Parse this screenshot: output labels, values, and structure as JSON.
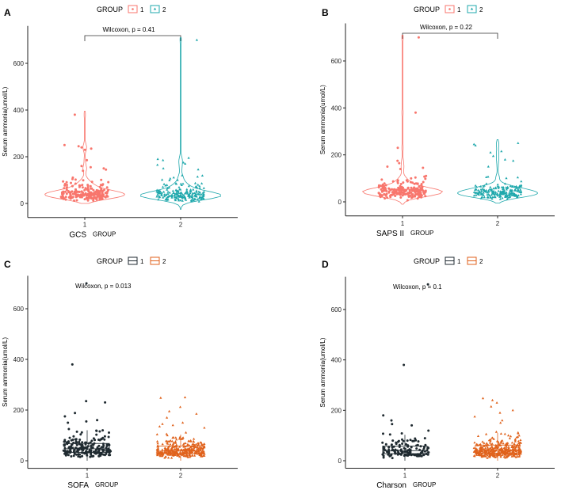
{
  "chart_data": [
    {
      "panel_label": "A",
      "type": "violin",
      "legend_title": "GROUP",
      "legend_position": "top",
      "legend_entries": [
        "1",
        "2"
      ],
      "ylabel": "Serum ammonia(umol/L)",
      "xlabel_left": "GCS",
      "xlabel": "GROUP",
      "categories": [
        "1",
        "2"
      ],
      "yticks": [
        "0",
        "200",
        "400",
        "600"
      ],
      "ylim": [
        -60,
        760
      ],
      "annotation": "Wilcoxon, p = 0.41",
      "bracket": true,
      "colors": [
        "#F8766D",
        "#1FA8AC"
      ],
      "markers": [
        "circle",
        "triangle"
      ],
      "series": [
        {
          "name": "1",
          "median": 40,
          "n": 200,
          "outliers": [
            380,
            250,
            245,
            240,
            235,
            230,
            185,
            160,
            155,
            150,
            145,
            140
          ],
          "violin_max": 395,
          "violin_min": 0
        },
        {
          "name": "2",
          "median": 38,
          "n": 200,
          "outliers": [
            700,
            195,
            190,
            185,
            175,
            170,
            165,
            150,
            145,
            120
          ],
          "violin_max": 710,
          "violin_min": -25
        }
      ]
    },
    {
      "panel_label": "B",
      "type": "violin",
      "legend_title": "GROUP",
      "legend_position": "top",
      "legend_entries": [
        "1",
        "2"
      ],
      "ylabel": "Serum ammonia(umol/L)",
      "xlabel_left": "SAPS II",
      "xlabel": "GROUP",
      "categories": [
        "1",
        "2"
      ],
      "yticks": [
        "0",
        "200",
        "400",
        "600"
      ],
      "ylim": [
        -60,
        760
      ],
      "annotation": "Wilcoxon, p = 0.22",
      "bracket": true,
      "colors": [
        "#F8766D",
        "#1FA8AC"
      ],
      "markers": [
        "circle",
        "triangle"
      ],
      "series": [
        {
          "name": "1",
          "median": 42,
          "n": 200,
          "outliers": [
            700,
            380,
            230,
            175,
            165,
            150,
            145,
            140
          ],
          "violin_max": 710,
          "violin_min": -10
        },
        {
          "name": "2",
          "median": 38,
          "n": 200,
          "outliers": [
            250,
            245,
            240,
            215,
            210,
            195,
            180,
            175,
            150
          ],
          "violin_max": 265,
          "violin_min": -5
        }
      ]
    },
    {
      "panel_label": "C",
      "type": "box",
      "legend_title": "GROUP",
      "legend_position": "top",
      "legend_entries": [
        "1",
        "2"
      ],
      "ylabel": "Serum ammonia(umol/L)",
      "xlabel_left": "SOFA",
      "xlabel": "GROUP",
      "categories": [
        "1",
        "2"
      ],
      "yticks": [
        "0",
        "200",
        "400",
        "600"
      ],
      "ylim": [
        -30,
        730
      ],
      "annotation": "Wilcoxon, p = 0.013",
      "bracket": false,
      "colors": [
        "#1F2A30",
        "#E0621C"
      ],
      "markers": [
        "circle",
        "triangle"
      ],
      "series": [
        {
          "name": "1",
          "q1": 33,
          "median": 47,
          "q3": 68,
          "n": 200,
          "outliers": [
            700,
            380,
            235,
            230,
            188,
            175,
            160,
            155,
            150,
            125
          ]
        },
        {
          "name": "2",
          "q1": 28,
          "median": 38,
          "q3": 58,
          "n": 330,
          "outliers": [
            250,
            248,
            212,
            195,
            185,
            170,
            150,
            145,
            140,
            135,
            130
          ]
        }
      ]
    },
    {
      "panel_label": "D",
      "type": "box",
      "legend_title": "GROUP",
      "legend_position": "top",
      "legend_entries": [
        "1",
        "2"
      ],
      "ylabel": "Serum ammonia(umol/L)",
      "xlabel_left": "Charson",
      "xlabel": "GROUP",
      "categories": [
        "1",
        "2"
      ],
      "yticks": [
        "0",
        "200",
        "400",
        "600"
      ],
      "ylim": [
        -30,
        730
      ],
      "annotation": "Wilcoxon, p = 0.1",
      "bracket": false,
      "colors": [
        "#1F2A30",
        "#E0621C"
      ],
      "markers": [
        "circle",
        "triangle"
      ],
      "series": [
        {
          "name": "1",
          "q1": 28,
          "median": 40,
          "q3": 58,
          "n": 130,
          "outliers": [
            700,
            380,
            180,
            160,
            145,
            140
          ]
        },
        {
          "name": "2",
          "q1": 30,
          "median": 40,
          "q3": 62,
          "n": 380,
          "outliers": [
            248,
            240,
            230,
            215,
            200,
            190,
            175,
            160,
            150
          ]
        }
      ]
    }
  ]
}
